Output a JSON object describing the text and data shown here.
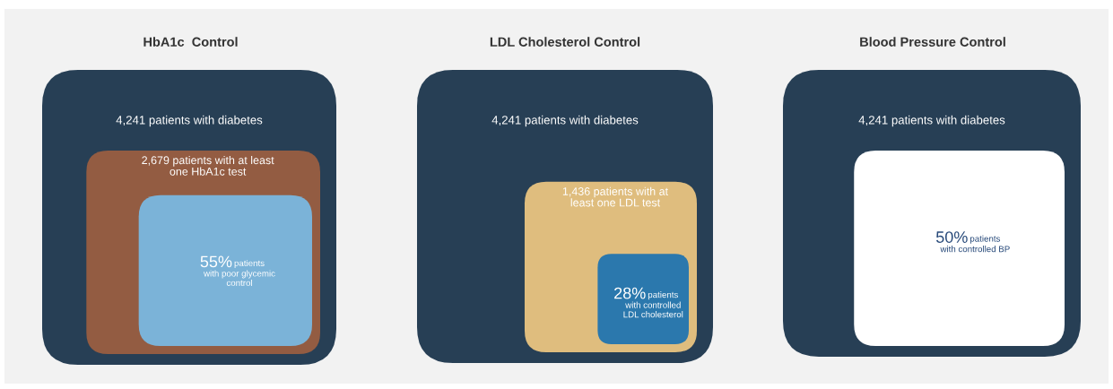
{
  "chart_data": [
    {
      "type": "other",
      "title": "HbA1c  Control",
      "colors": [
        "#273f55",
        "#935c42",
        "#7bb3d8"
      ],
      "values": [
        4241,
        2679,
        55
      ],
      "value_labels": [
        "4,241 patients with diabetes",
        "2,679 patients with at least\none HbA1c test",
        "55%"
      ],
      "annotations": [
        "patients",
        "with poor glycemic\ncontrol"
      ]
    },
    {
      "type": "other",
      "title": "LDL Cholesterol Control",
      "colors": [
        "#273f55",
        "#dfbd7e",
        "#2b78ad"
      ],
      "values": [
        4241,
        1436,
        28
      ],
      "value_labels": [
        "4,241 patients with diabetes",
        "1,436 patients with at\nleast one LDL test",
        "28%"
      ],
      "annotations": [
        "patients",
        "with controlled\nLDL cholesterol"
      ]
    },
    {
      "type": "other",
      "title": "Blood Pressure Control",
      "colors": [
        "#273f55",
        "#ffffff"
      ],
      "values": [
        4241,
        50
      ],
      "value_labels": [
        "4,241 patients with diabetes",
        "50%"
      ],
      "annotations": [
        "patients",
        "with controlled BP"
      ]
    }
  ]
}
